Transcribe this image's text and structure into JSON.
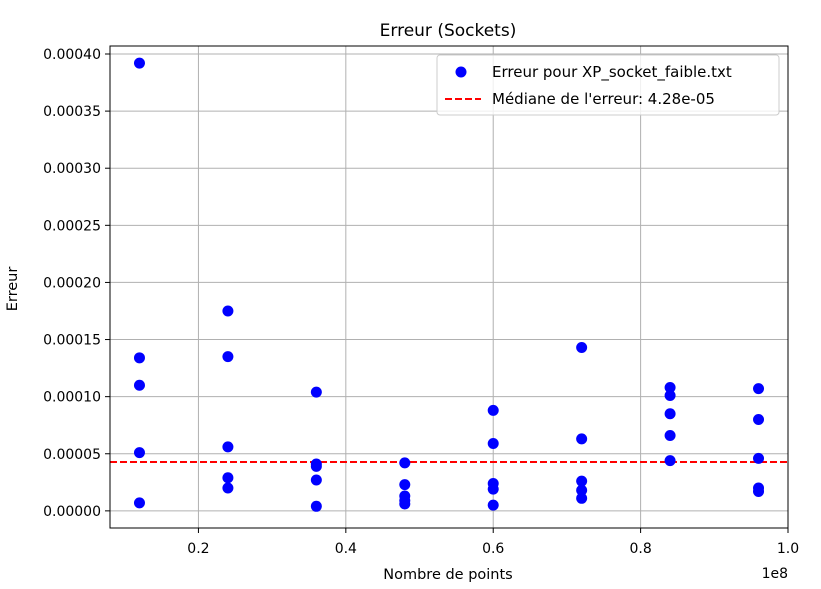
{
  "chart_data": {
    "type": "scatter",
    "title": "Erreur (Sockets)",
    "xlabel": "Nombre de points",
    "ylabel": "Erreur",
    "x_offset_text": "1e8",
    "x_scale": 100000000,
    "xlim": [
      0.08,
      1.0
    ],
    "ylim": [
      -1.5e-05,
      0.000407
    ],
    "x_ticks": [
      0.2,
      0.4,
      0.6,
      0.8,
      1.0
    ],
    "x_tick_labels": [
      "0.2",
      "0.4",
      "0.6",
      "0.8",
      "1.0"
    ],
    "y_ticks": [
      0,
      5e-05,
      0.0001,
      0.00015,
      0.0002,
      0.00025,
      0.0003,
      0.00035,
      0.0004
    ],
    "y_tick_labels": [
      "0.00000",
      "0.00005",
      "0.00010",
      "0.00015",
      "0.00020",
      "0.00025",
      "0.00030",
      "0.00035",
      "0.00040"
    ],
    "grid": true,
    "legend_position": "top-right",
    "series": [
      {
        "name": "Erreur pour XP_socket_faible.txt",
        "kind": "scatter",
        "color": "#0000ff",
        "points": [
          [
            12000000,
            0.000392
          ],
          [
            12000000,
            0.000134
          ],
          [
            12000000,
            0.00011
          ],
          [
            12000000,
            5.1e-05
          ],
          [
            12000000,
            7e-06
          ],
          [
            24000000,
            0.000175
          ],
          [
            24000000,
            0.000135
          ],
          [
            24000000,
            5.6e-05
          ],
          [
            24000000,
            2.9e-05
          ],
          [
            24000000,
            2e-05
          ],
          [
            36000000,
            0.000104
          ],
          [
            36000000,
            4.1e-05
          ],
          [
            36000000,
            3.9e-05
          ],
          [
            36000000,
            2.7e-05
          ],
          [
            36000000,
            4e-06
          ],
          [
            48000000,
            4.2e-05
          ],
          [
            48000000,
            2.3e-05
          ],
          [
            48000000,
            1.3e-05
          ],
          [
            48000000,
            9e-06
          ],
          [
            48000000,
            6e-06
          ],
          [
            60000000,
            8.8e-05
          ],
          [
            60000000,
            5.9e-05
          ],
          [
            60000000,
            2.4e-05
          ],
          [
            60000000,
            1.9e-05
          ],
          [
            60000000,
            5e-06
          ],
          [
            72000000,
            0.000143
          ],
          [
            72000000,
            6.3e-05
          ],
          [
            72000000,
            2.6e-05
          ],
          [
            72000000,
            1.8e-05
          ],
          [
            72000000,
            1.1e-05
          ],
          [
            84000000,
            0.000108
          ],
          [
            84000000,
            0.000101
          ],
          [
            84000000,
            8.5e-05
          ],
          [
            84000000,
            6.6e-05
          ],
          [
            84000000,
            4.4e-05
          ],
          [
            96000000,
            0.000107
          ],
          [
            96000000,
            8e-05
          ],
          [
            96000000,
            4.6e-05
          ],
          [
            96000000,
            2e-05
          ],
          [
            96000000,
            1.7e-05
          ]
        ]
      },
      {
        "name": "Médiane de l'erreur: 4.28e-05",
        "kind": "hline",
        "color": "#ff0000",
        "value": 4.28e-05
      }
    ]
  }
}
